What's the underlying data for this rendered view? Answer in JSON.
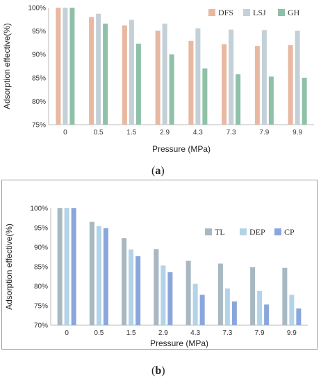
{
  "chart_data": [
    {
      "type": "bar",
      "panel_label": "a",
      "categories": [
        "0",
        "0.5",
        "1.5",
        "2.9",
        "4.3",
        "7.3",
        "7.9",
        "9.9"
      ],
      "series": [
        {
          "name": "DFS",
          "color": "#e8b8a0",
          "values": [
            100,
            98.0,
            96.2,
            95.1,
            92.9,
            92.2,
            91.8,
            92.0
          ]
        },
        {
          "name": "LSJ",
          "color": "#c3d0d8",
          "values": [
            100,
            98.7,
            97.4,
            96.6,
            95.6,
            95.3,
            95.2,
            95.1
          ]
        },
        {
          "name": "GH",
          "color": "#8fc0a8",
          "values": [
            100,
            96.6,
            92.3,
            90.0,
            87.0,
            85.8,
            85.3,
            85.0
          ]
        }
      ],
      "xlabel": "Pressure (MPa)",
      "ylabel": "Adsorption effective(%)",
      "ylim": [
        75,
        100
      ],
      "yticks": [
        "75%",
        "80%",
        "85%",
        "90%",
        "95%",
        "100%"
      ],
      "legend": "top-right",
      "grid": false
    },
    {
      "type": "bar",
      "panel_label": "b",
      "categories": [
        "0",
        "0.5",
        "1.5",
        "2.9",
        "4.3",
        "7.3",
        "7.9",
        "9.9"
      ],
      "series": [
        {
          "name": "TL",
          "color": "#a7b8c1",
          "values": [
            100,
            96.5,
            92.3,
            89.5,
            86.5,
            85.8,
            84.9,
            84.7
          ]
        },
        {
          "name": "DEP",
          "color": "#b3d3e8",
          "values": [
            100,
            95.4,
            89.4,
            85.3,
            80.6,
            79.4,
            78.8,
            77.8
          ]
        },
        {
          "name": "CP",
          "color": "#8aa6dc",
          "values": [
            100,
            94.9,
            87.7,
            83.6,
            77.8,
            76.1,
            75.3,
            74.3
          ]
        }
      ],
      "xlabel": "Pressure (MPa)",
      "ylabel": "Adsorption effective(%)",
      "ylim": [
        70,
        100
      ],
      "yticks": [
        "70%",
        "75%",
        "80%",
        "85%",
        "90%",
        "95%",
        "100%"
      ],
      "legend": "right",
      "grid": false
    }
  ]
}
